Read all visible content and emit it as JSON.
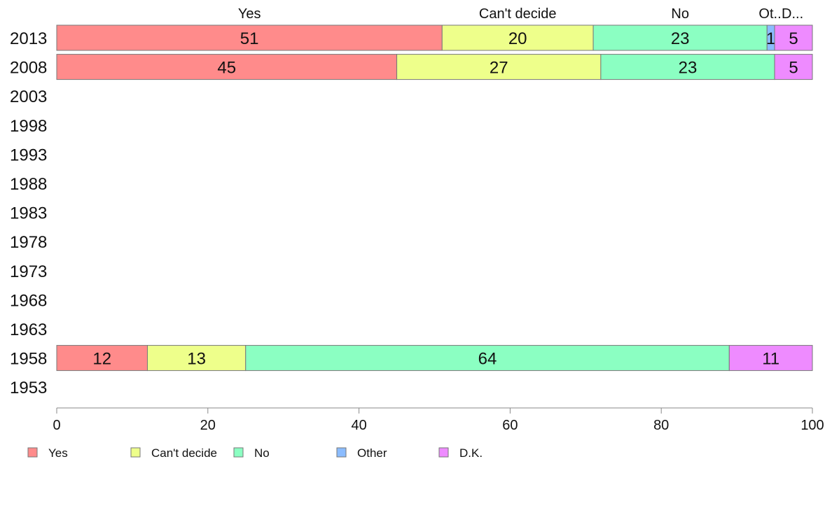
{
  "chart_data": {
    "type": "bar",
    "orientation": "horizontal",
    "stacked": true,
    "categories": [
      "2013",
      "2008",
      "2003",
      "1998",
      "1993",
      "1988",
      "1983",
      "1978",
      "1973",
      "1968",
      "1963",
      "1958",
      "1953"
    ],
    "series": [
      {
        "name": "Yes",
        "color": "#ff8b8b",
        "values": [
          51,
          45,
          null,
          null,
          null,
          null,
          null,
          null,
          null,
          null,
          null,
          12,
          null
        ]
      },
      {
        "name": "Can't decide",
        "color": "#eeff8b",
        "values": [
          20,
          27,
          null,
          null,
          null,
          null,
          null,
          null,
          null,
          null,
          null,
          13,
          null
        ]
      },
      {
        "name": "No",
        "color": "#8bffc2",
        "values": [
          23,
          23,
          null,
          null,
          null,
          null,
          null,
          null,
          null,
          null,
          null,
          64,
          null
        ]
      },
      {
        "name": "Other",
        "color": "#8bbcff",
        "values": [
          1,
          0,
          null,
          null,
          null,
          null,
          null,
          null,
          null,
          null,
          null,
          0,
          null
        ]
      },
      {
        "name": "D.K.",
        "color": "#ee8bff",
        "values": [
          5,
          5,
          null,
          null,
          null,
          null,
          null,
          null,
          null,
          null,
          null,
          11,
          null
        ]
      }
    ],
    "top_labels": [
      "Yes",
      "Can't decide",
      "No",
      "Ot..",
      "D..."
    ],
    "xlim": [
      0,
      100
    ],
    "xticks": [
      0,
      20,
      40,
      60,
      80,
      100
    ],
    "grid": false,
    "legend_position": "bottom"
  }
}
